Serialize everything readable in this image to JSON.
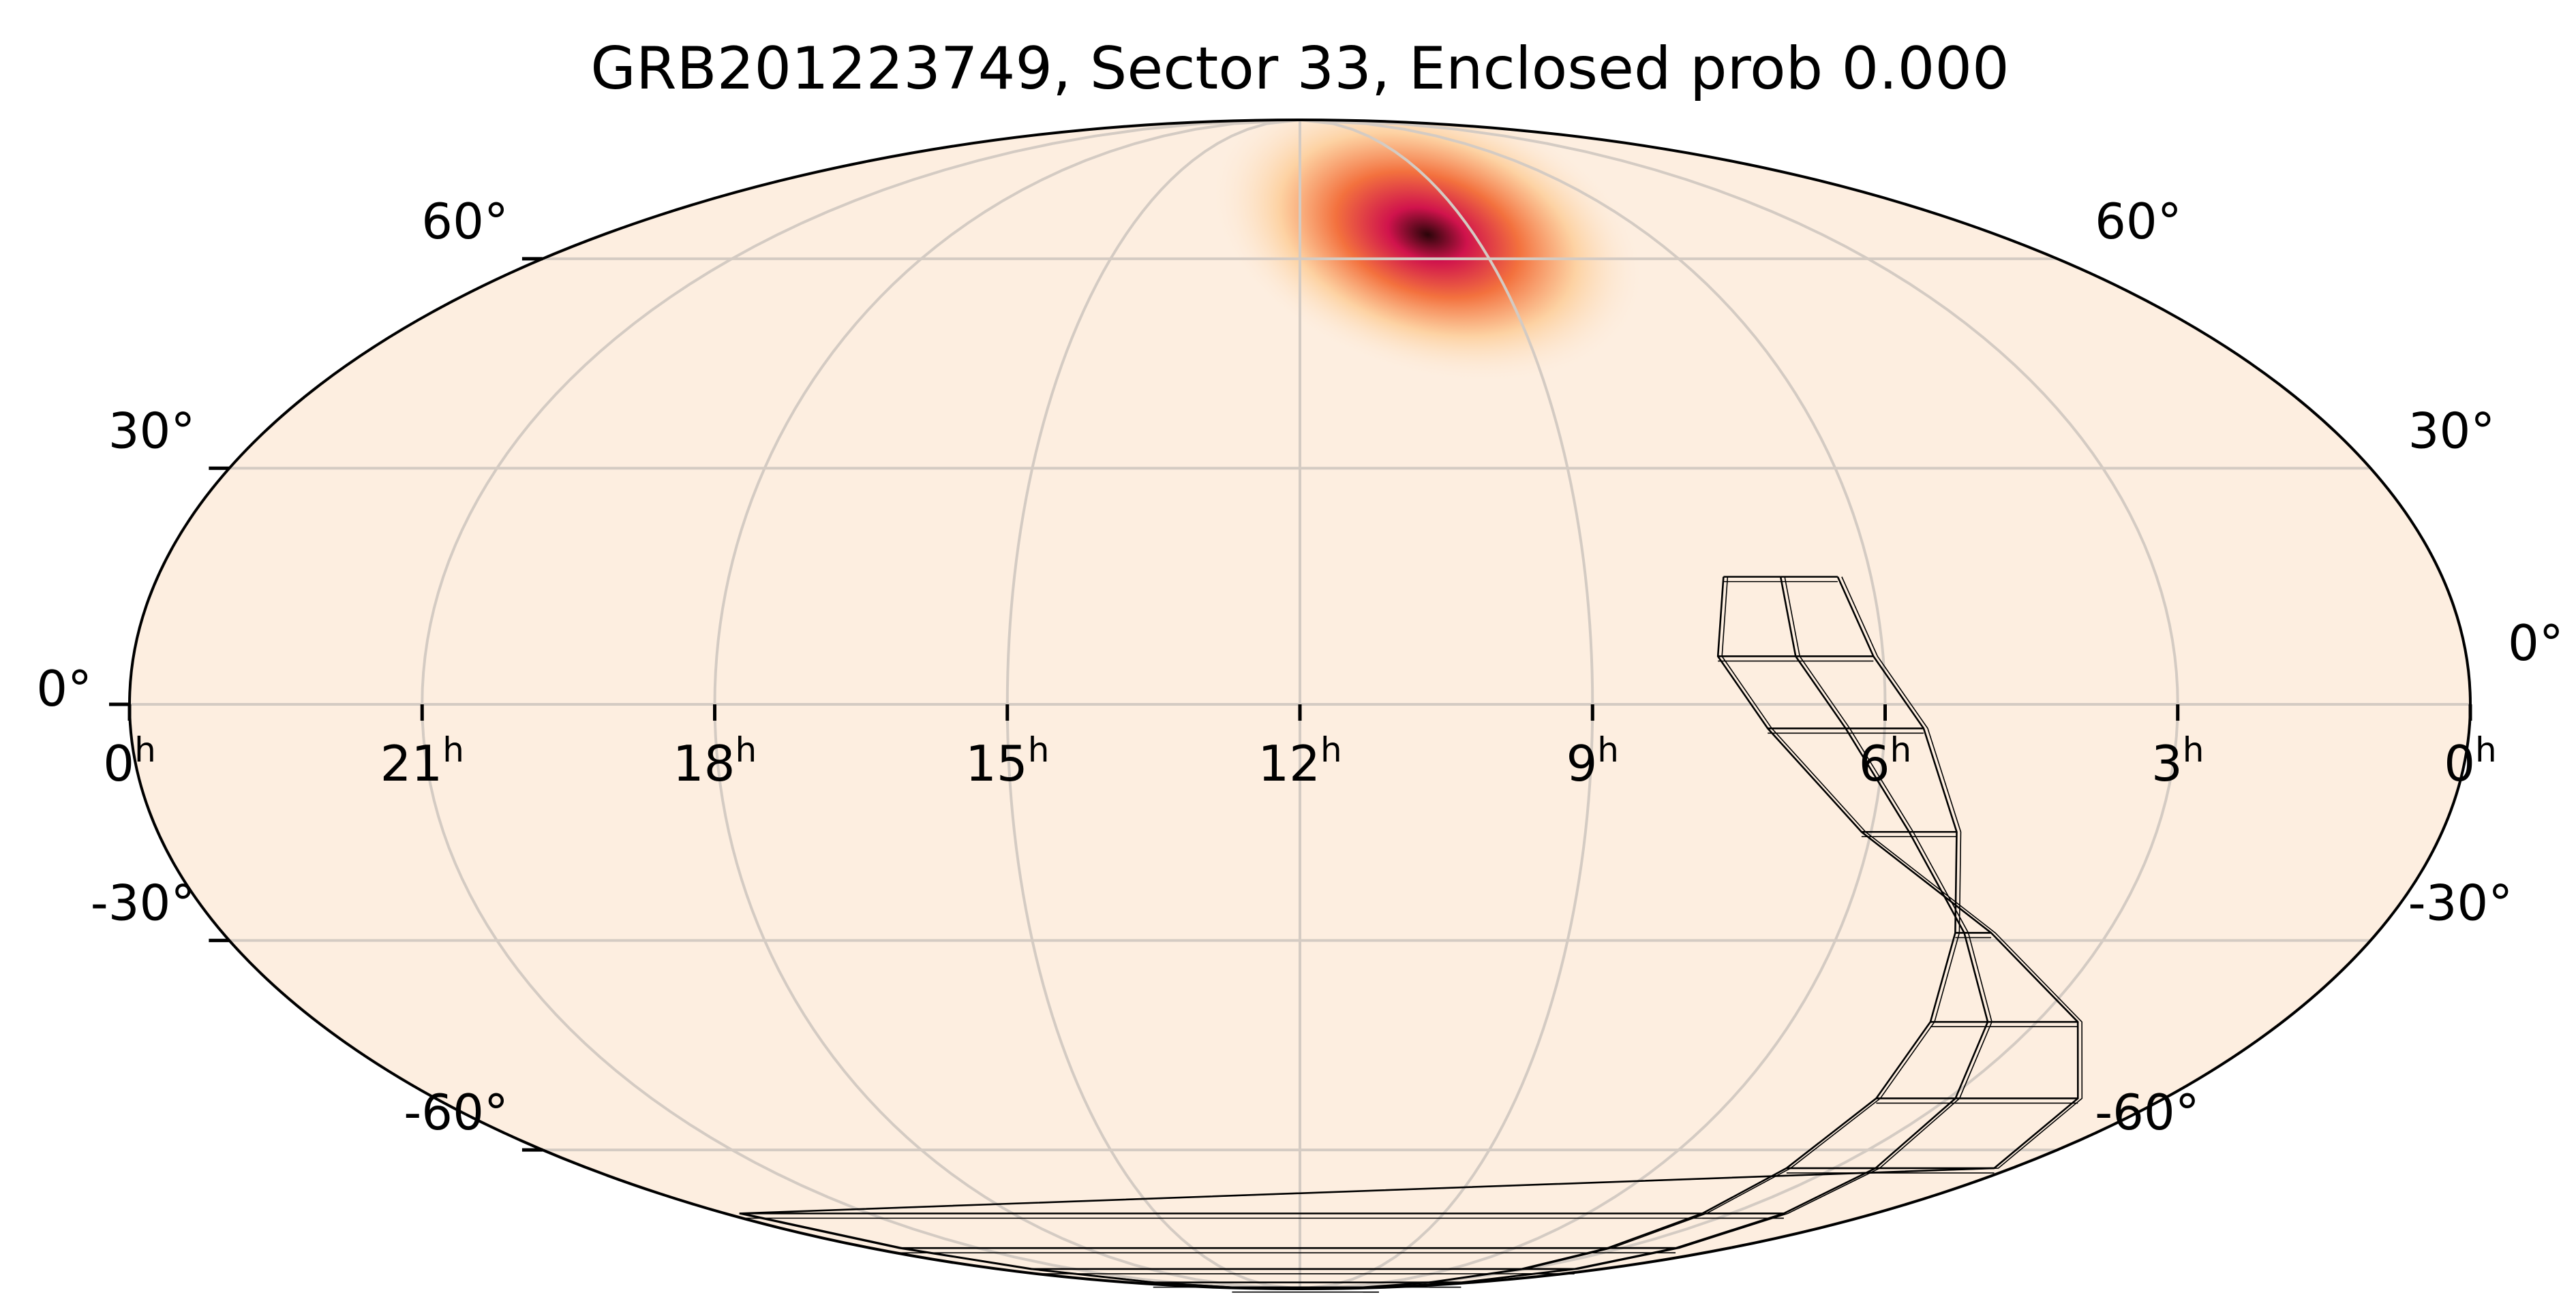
{
  "chart_data": {
    "type": "heatmap",
    "projection": "mollweide",
    "title": "GRB201223749, Sector 33, Enclosed prob 0.000",
    "xlabel": "",
    "ylabel": "",
    "grid": true,
    "ra_ticks": [
      {
        "hours": 24,
        "label": "0",
        "suffix": "h"
      },
      {
        "hours": 21,
        "label": "21",
        "suffix": "h"
      },
      {
        "hours": 18,
        "label": "18",
        "suffix": "h"
      },
      {
        "hours": 15,
        "label": "15",
        "suffix": "h"
      },
      {
        "hours": 12,
        "label": "12",
        "suffix": "h"
      },
      {
        "hours": 9,
        "label": "9",
        "suffix": "h"
      },
      {
        "hours": 6,
        "label": "6",
        "suffix": "h"
      },
      {
        "hours": 3,
        "label": "3",
        "suffix": "h"
      },
      {
        "hours": 0,
        "label": "0",
        "suffix": "h"
      }
    ],
    "dec_ticks": [
      {
        "deg": 60,
        "label": "60°"
      },
      {
        "deg": 30,
        "label": "30°"
      },
      {
        "deg": 0,
        "label": "0°"
      },
      {
        "deg": -30,
        "label": "-30°"
      },
      {
        "deg": -60,
        "label": "-60°"
      }
    ],
    "probability_peak": {
      "ra_hours": 9.8,
      "dec_deg": 64
    },
    "colors": {
      "background": "#fdeee0",
      "grid": "#d4cbc3",
      "outline": "#000000",
      "heat_low": "#fdcf9c",
      "heat_mid": "#f3713e",
      "heat_high": "#d0134c",
      "heat_peak": "#2a0509"
    },
    "footprint": {
      "sector": 33,
      "columns": 2,
      "rows": 12,
      "corner_edge_ra_hours": [
        7.55,
        6.95,
        6.35
      ],
      "corner_edge_dec_deg": [
        16,
        6,
        -3,
        -16,
        -29,
        -41,
        -52,
        -63,
        -71,
        -78,
        -83,
        -87,
        -89
      ],
      "outer_edge_ra_hours": [
        7.55,
        7.7,
        7.2,
        6.1,
        4.3,
        2.5,
        1.2,
        0.3,
        23.7,
        23.2,
        22.7,
        22.2,
        21.8
      ],
      "middle_edge_ra_hours": [
        6.95,
        6.9,
        6.4,
        5.6,
        4.6,
        3.6,
        2.9,
        2.3,
        1.9,
        1.5,
        1.1,
        0.8,
        0.6
      ],
      "inner_edge_ra_hours": [
        6.35,
        6.1,
        5.6,
        5.1,
        4.7,
        4.3,
        4.0,
        3.8,
        3.6,
        3.4,
        3.2,
        3.0,
        2.9
      ]
    }
  }
}
